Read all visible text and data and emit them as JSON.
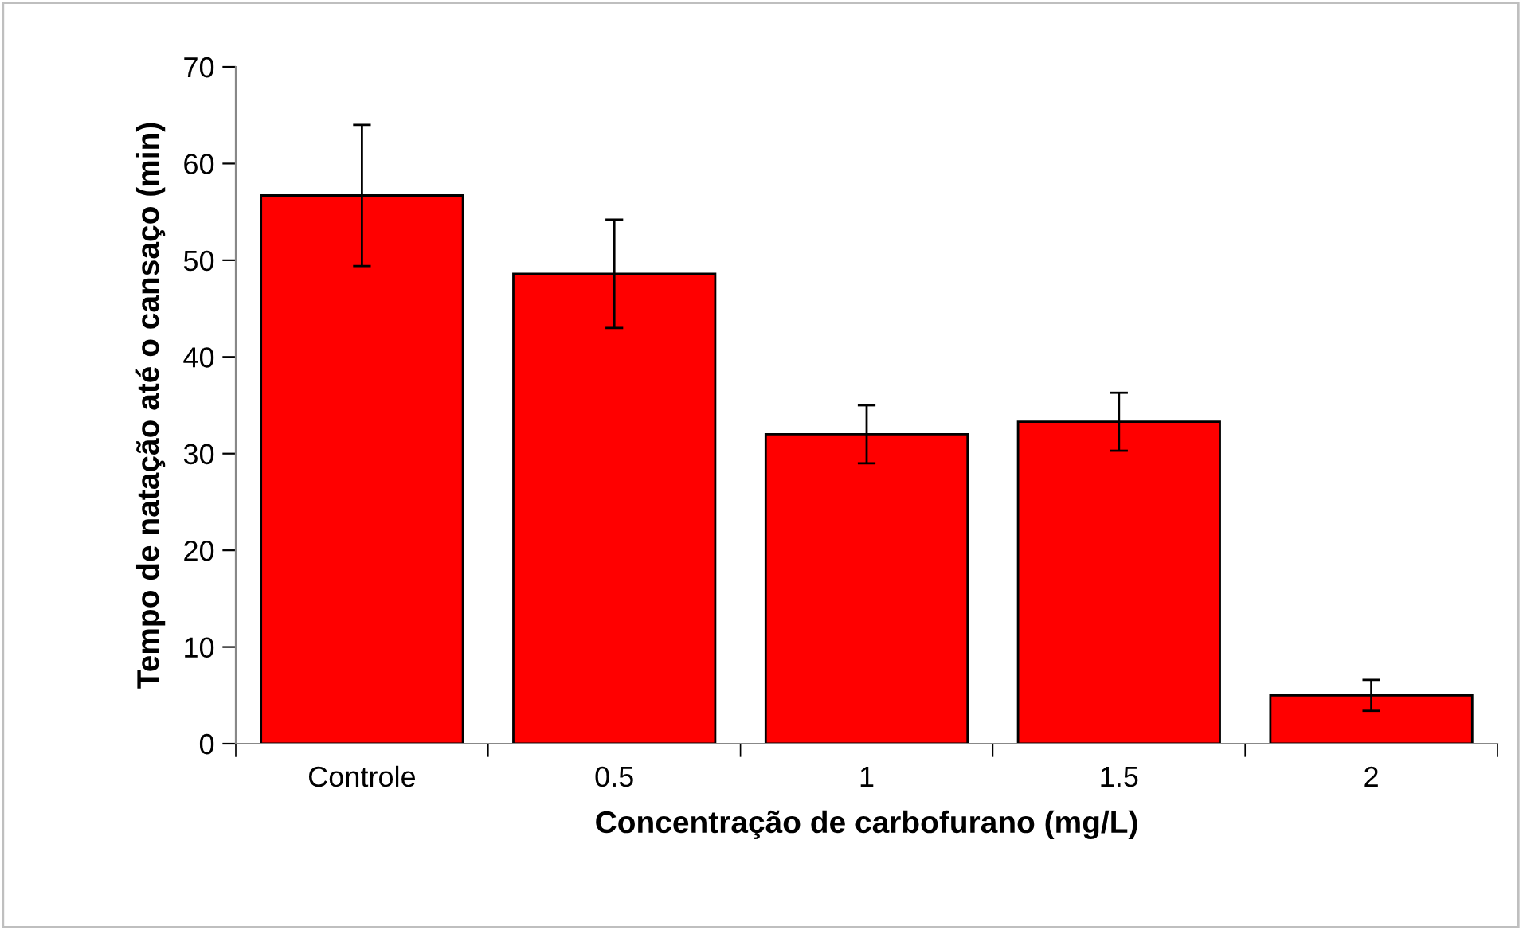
{
  "chart_data": {
    "type": "bar",
    "xlabel": "Concentração de carbofurano (mg/L)",
    "ylabel": "Tempo de natação até o cansaço (min)",
    "categories": [
      "Controle",
      "0.5",
      "1",
      "1.5",
      "2"
    ],
    "values": [
      56.7,
      48.6,
      32.0,
      33.3,
      5.0
    ],
    "errors": [
      7.3,
      5.6,
      3.0,
      3.0,
      1.6
    ],
    "color": "#ff0000",
    "ylim": [
      0,
      70
    ],
    "yticks": [
      0,
      10,
      20,
      30,
      40,
      50,
      60,
      70
    ],
    "grid": false,
    "legend": false
  }
}
